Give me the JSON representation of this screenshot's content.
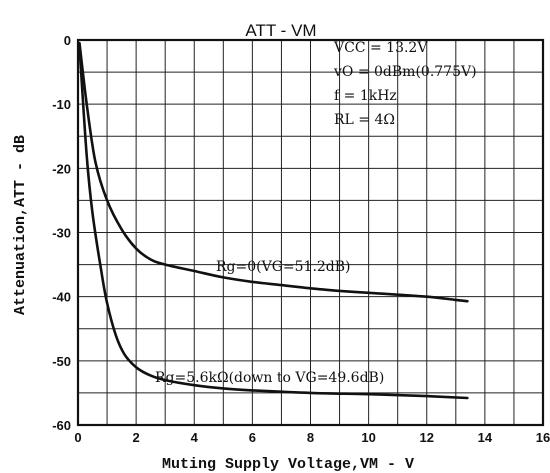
{
  "chart_data": {
    "type": "line",
    "title": "ATT - VM",
    "xlabel": "Muting Supply Voltage,VM - V",
    "ylabel": "Attenuation,ATT - dB",
    "xlim": [
      0,
      16
    ],
    "ylim": [
      -60,
      0
    ],
    "x_ticks": [
      "0",
      "2",
      "4",
      "6",
      "8",
      "10",
      "12",
      "14",
      "16"
    ],
    "y_ticks": [
      "0",
      "-10",
      "-20",
      "-30",
      "-40",
      "-50",
      "-60"
    ],
    "grid": true,
    "conditions": [
      "VCC = 13.2V",
      "vO = 0dBm(0.775V)",
      "f = 1kHz",
      "RL = 4Ω"
    ],
    "series": [
      {
        "name": "Rg=0(VG=51.2dB)",
        "x": [
          0.05,
          0.3,
          0.6,
          1.0,
          1.5,
          2.0,
          2.5,
          3.0,
          4.0,
          5.0,
          6.0,
          7.0,
          8.0,
          9.0,
          10.0,
          11.0,
          12.0,
          13.0,
          13.4
        ],
        "y": [
          -0.5,
          -10.0,
          -19.0,
          -25.0,
          -29.5,
          -32.5,
          -34.2,
          -35.0,
          -36.0,
          -37.0,
          -37.7,
          -38.2,
          -38.7,
          -39.1,
          -39.4,
          -39.7,
          -40.0,
          -40.5,
          -40.7
        ]
      },
      {
        "name": "Rg=5.6kΩ(down to VG=49.6dB)",
        "x": [
          0.05,
          0.3,
          0.5,
          0.8,
          1.0,
          1.3,
          1.6,
          2.0,
          2.5,
          3.0,
          4.0,
          5.0,
          6.0,
          8.0,
          10.0,
          12.0,
          13.4
        ],
        "y": [
          -1.0,
          -18.0,
          -27.0,
          -36.0,
          -41.0,
          -46.0,
          -49.0,
          -51.0,
          -52.3,
          -53.0,
          -53.8,
          -54.3,
          -54.6,
          -55.0,
          -55.2,
          -55.5,
          -55.8
        ]
      }
    ]
  }
}
